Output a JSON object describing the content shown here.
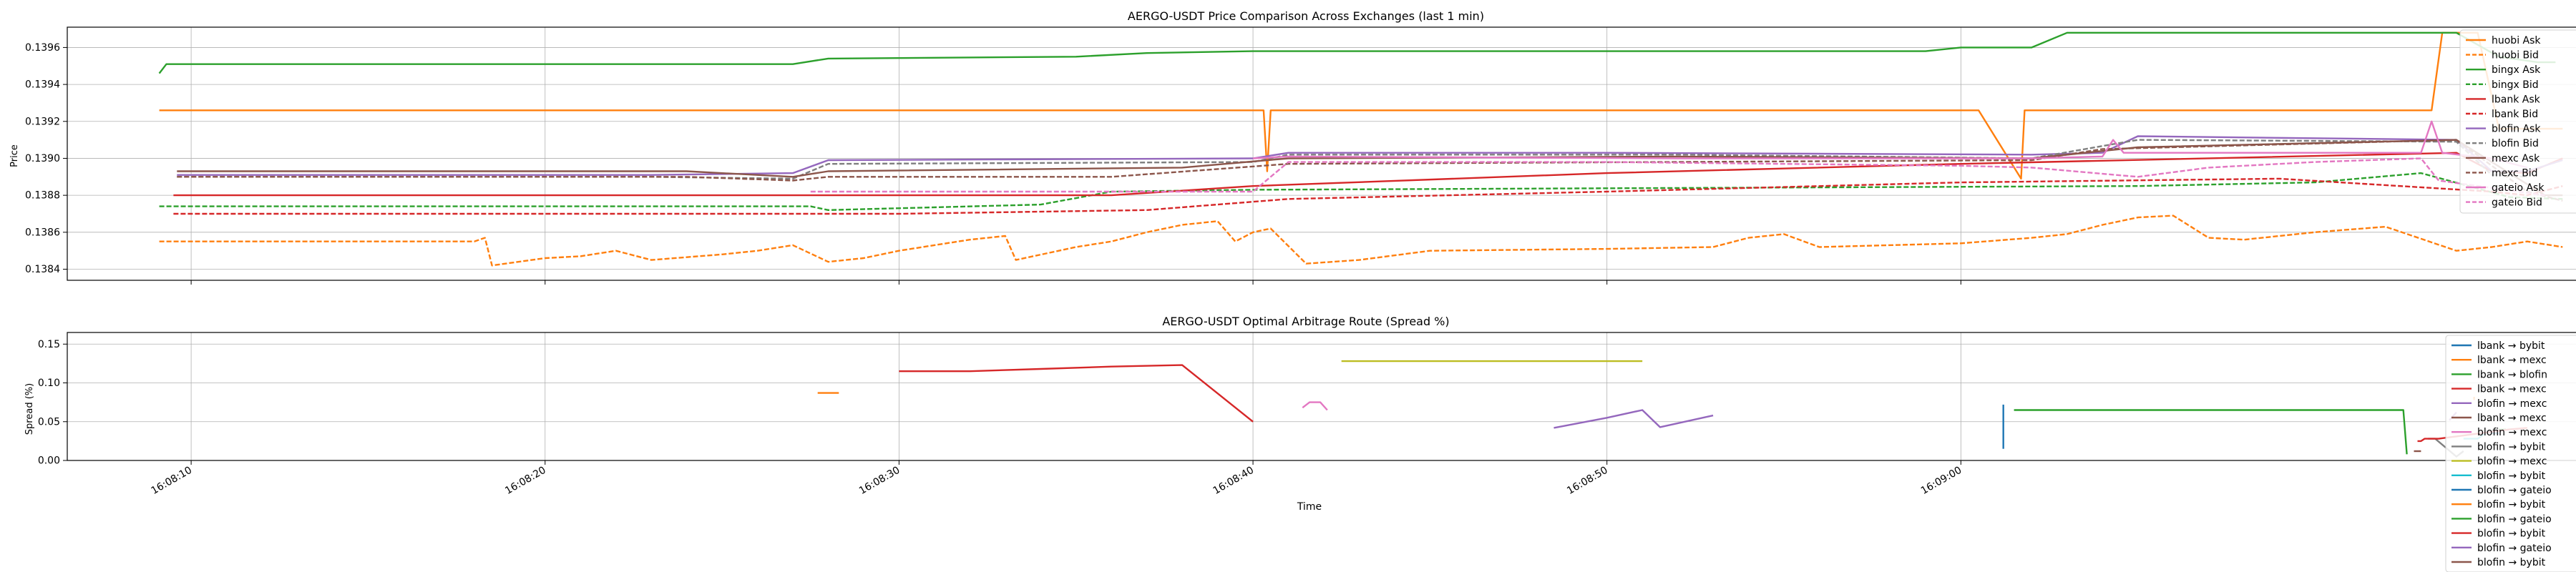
{
  "chart_data": [
    {
      "type": "line",
      "title": "AERGO-USDT Price Comparison Across Exchanges (last 1 min)",
      "xlabel": "",
      "ylabel": "Price",
      "x_unit": "seconds",
      "x_range": [
        "16:08:06.5",
        "16:09:17.5"
      ],
      "ylim": [
        0.13834,
        0.13971
      ],
      "yticks": [
        0.1384,
        0.1386,
        0.1388,
        0.139,
        0.1392,
        0.1394,
        0.1396
      ],
      "ytick_labels": [
        "0.1384",
        "0.1386",
        "0.1388",
        "0.1390",
        "0.1392",
        "0.1394",
        "0.1396"
      ],
      "xticks": [
        "16:08:10",
        "16:08:20",
        "16:08:30",
        "16:08:40",
        "16:08:50",
        "16:09:00"
      ],
      "grid": true,
      "legend_position": "upper-right",
      "series": [
        {
          "name": "huobi Ask",
          "color": "#ff7f0e",
          "dash": false,
          "x": [
            "16:08:09.1",
            "16:08:40.3",
            "16:08:40.4",
            "16:08:40.5",
            "16:09:00.5",
            "16:09:01.7",
            "16:09:01.8",
            "16:09:13.3",
            "16:09:13.6",
            "16:09:13.8",
            "16:09:14.2",
            "16:09:14.6",
            "16:09:15.2",
            "16:09:17.0"
          ],
          "y": [
            0.13926,
            0.13926,
            0.13893,
            0.13926,
            0.13926,
            0.13889,
            0.13926,
            0.13926,
            0.13968,
            0.13968,
            0.13968,
            0.13968,
            0.13916,
            0.13916
          ]
        },
        {
          "name": "huobi Bid",
          "color": "#ff7f0e",
          "dash": true,
          "x": [
            "16:08:09.1",
            "16:08:18.0",
            "16:08:18.3",
            "16:08:18.5",
            "16:08:20.0",
            "16:08:21.0",
            "16:08:22.0",
            "16:08:23.0",
            "16:08:25.0",
            "16:08:26.0",
            "16:08:27.0",
            "16:08:28.0",
            "16:08:28.5",
            "16:08:29.0",
            "16:08:30.0",
            "16:08:31.0",
            "16:08:32.0",
            "16:08:33.0",
            "16:08:33.3",
            "16:08:35.0",
            "16:08:36.0",
            "16:08:37.0",
            "16:08:38.0",
            "16:08:39.0",
            "16:08:39.5",
            "16:08:40.0",
            "16:08:40.5",
            "16:08:41.5",
            "16:08:43.0",
            "16:08:45.0",
            "16:08:50.0",
            "16:08:53.0",
            "16:08:54.0",
            "16:08:55.0",
            "16:08:56.0",
            "16:09:00.0",
            "16:09:02.0",
            "16:09:03.0",
            "16:09:04.0",
            "16:09:05.0",
            "16:09:06.0",
            "16:09:07.0",
            "16:09:08.0",
            "16:09:10.0",
            "16:09:12.0",
            "16:09:14.0",
            "16:09:15.0",
            "16:09:16.0",
            "16:09:17.0"
          ],
          "y": [
            0.13855,
            0.13855,
            0.13857,
            0.13842,
            0.13846,
            0.13847,
            0.1385,
            0.13845,
            0.13848,
            0.1385,
            0.13853,
            0.13844,
            0.13845,
            0.13846,
            0.1385,
            0.13853,
            0.13856,
            0.13858,
            0.13845,
            0.13852,
            0.13855,
            0.1386,
            0.13864,
            0.13866,
            0.13855,
            0.1386,
            0.13862,
            0.13843,
            0.13845,
            0.1385,
            0.13851,
            0.13852,
            0.13857,
            0.13859,
            0.13852,
            0.13854,
            0.13857,
            0.13859,
            0.13864,
            0.13868,
            0.13869,
            0.13857,
            0.13856,
            0.1386,
            0.13863,
            0.1385,
            0.13852,
            0.13855,
            0.13852
          ]
        },
        {
          "name": "bingx Ask",
          "color": "#2ca02c",
          "dash": false,
          "x": [
            "16:08:09.1",
            "16:08:09.3",
            "16:08:27.0",
            "16:08:28.0",
            "16:08:35.0",
            "16:08:37.0",
            "16:08:40.0",
            "16:08:59.0",
            "16:09:00.0",
            "16:09:02.0",
            "16:09:03.0",
            "16:09:14.0",
            "16:09:15.2",
            "16:09:16.3",
            "16:09:16.8"
          ],
          "y": [
            0.13946,
            0.13951,
            0.13951,
            0.13954,
            0.13955,
            0.13957,
            0.13958,
            0.13958,
            0.1396,
            0.1396,
            0.13968,
            0.13968,
            0.13955,
            0.13952,
            0.13952
          ]
        },
        {
          "name": "bingx Bid",
          "color": "#2ca02c",
          "dash": true,
          "x": [
            "16:08:09.1",
            "16:08:27.5",
            "16:08:28.0",
            "16:08:34.0",
            "16:08:36.0",
            "16:08:40.0",
            "16:09:05.0",
            "16:09:10.0",
            "16:09:13.0",
            "16:09:15.5",
            "16:09:17.0"
          ],
          "y": [
            0.13874,
            0.13874,
            0.13872,
            0.13875,
            0.13882,
            0.13883,
            0.13885,
            0.13887,
            0.13892,
            0.13879,
            0.13878
          ]
        },
        {
          "name": "lbank Ask",
          "color": "#d62728",
          "dash": false,
          "x": [
            "16:08:09.5",
            "16:08:30.0",
            "16:08:36.0",
            "16:08:40.0",
            "16:08:50.0",
            "16:09:00.0",
            "16:09:14.0",
            "16:09:15.0",
            "16:09:16.0",
            "16:09:17.0"
          ],
          "y": [
            0.1388,
            0.1388,
            0.1388,
            0.13885,
            0.13892,
            0.13897,
            0.13903,
            0.13893,
            0.13892,
            0.139
          ]
        },
        {
          "name": "lbank Bid",
          "color": "#d62728",
          "dash": true,
          "x": [
            "16:08:09.5",
            "16:08:20.0",
            "16:08:30.0",
            "16:08:37.0",
            "16:08:41.0",
            "16:08:50.0",
            "16:09:00.0",
            "16:09:09.0",
            "16:09:15.0",
            "16:09:16.0",
            "16:09:17.0"
          ],
          "y": [
            0.1387,
            0.1387,
            0.1387,
            0.13872,
            0.13878,
            0.13882,
            0.13887,
            0.13889,
            0.13882,
            0.1388,
            0.13885
          ]
        },
        {
          "name": "blofin Ask",
          "color": "#9467bd",
          "dash": false,
          "x": [
            "16:08:09.6",
            "16:08:23.0",
            "16:08:27.0",
            "16:08:28.0",
            "16:08:40.0",
            "16:08:41.0",
            "16:08:50.0",
            "16:09:02.0",
            "16:09:04.0",
            "16:09:05.0",
            "16:09:14.0",
            "16:09:15.0",
            "16:09:16.0",
            "16:09:17.0"
          ],
          "y": [
            0.13891,
            0.13891,
            0.13892,
            0.13899,
            0.139,
            0.13903,
            0.13903,
            0.13902,
            0.13903,
            0.13912,
            0.1391,
            0.13893,
            0.13893,
            0.13899
          ]
        },
        {
          "name": "blofin Bid",
          "color": "#7f7f7f",
          "dash": true,
          "x": [
            "16:08:09.6",
            "16:08:23.0",
            "16:08:27.0",
            "16:08:28.0",
            "16:08:40.0",
            "16:08:41.0",
            "16:08:52.0",
            "16:09:02.0",
            "16:09:05.0",
            "16:09:14.0",
            "16:09:15.0",
            "16:09:16.0"
          ],
          "y": [
            0.1389,
            0.1389,
            0.13889,
            0.13897,
            0.13898,
            0.13902,
            0.13902,
            0.139,
            0.1391,
            0.13909,
            0.13891,
            0.1389
          ]
        },
        {
          "name": "mexc Ask",
          "color": "#8c564b",
          "dash": false,
          "x": [
            "16:08:09.6",
            "16:08:24.0",
            "16:08:27.0",
            "16:08:28.0",
            "16:08:38.0",
            "16:08:41.0",
            "16:08:52.0",
            "16:09:02.0",
            "16:09:05.0",
            "16:09:14.0",
            "16:09:16.5",
            "16:09:17.0"
          ],
          "y": [
            0.13893,
            0.13893,
            0.1389,
            0.13893,
            0.13895,
            0.139,
            0.13901,
            0.139,
            0.13906,
            0.1391,
            0.1388,
            0.1388
          ]
        },
        {
          "name": "mexc Bid",
          "color": "#8c564b",
          "dash": true,
          "x": [
            "16:08:09.6",
            "16:08:24.0",
            "16:08:27.0",
            "16:08:28.0",
            "16:08:36.0",
            "16:08:41.0",
            "16:09:02.0",
            "16:09:04.0",
            "16:09:14.0",
            "16:09:16.0",
            "16:09:17.0"
          ],
          "y": [
            0.1389,
            0.1389,
            0.13888,
            0.1389,
            0.1389,
            0.13897,
            0.13899,
            0.13905,
            0.1391,
            0.13882,
            0.13877
          ]
        },
        {
          "name": "gateio Ask",
          "color": "#e377c2",
          "dash": false,
          "x": [
            "16:08:40.0",
            "16:08:41.0",
            "16:08:52.0",
            "16:09:02.0",
            "16:09:04.0",
            "16:09:04.3",
            "16:09:04.6",
            "16:09:13.0",
            "16:09:13.3",
            "16:09:13.6",
            "16:09:15.0",
            "16:09:16.0"
          ],
          "y": [
            0.139,
            0.13901,
            0.139,
            0.139,
            0.13901,
            0.1391,
            0.13903,
            0.13903,
            0.1392,
            0.13903,
            0.139,
            0.13895
          ]
        },
        {
          "name": "gateio Bid",
          "color": "#e377c2",
          "dash": true,
          "x": [
            "16:08:27.5",
            "16:08:40.0",
            "16:08:41.0",
            "16:08:50.0",
            "16:09:00.0",
            "16:09:02.0",
            "16:09:05.0",
            "16:09:07.0",
            "16:09:10.0",
            "16:09:13.0",
            "16:09:13.5",
            "16:09:15.0",
            "16:09:16.5"
          ],
          "y": [
            0.13882,
            0.13882,
            0.13898,
            0.13898,
            0.13896,
            0.13895,
            0.1389,
            0.13895,
            0.13898,
            0.139,
            0.13888,
            0.13884,
            0.1388
          ]
        }
      ]
    },
    {
      "type": "line",
      "title": "AERGO-USDT Optimal Arbitrage Route (Spread %)",
      "xlabel": "Time",
      "ylabel": "Spread (%)",
      "x_unit": "seconds",
      "x_range": [
        "16:08:06.5",
        "16:09:17.5"
      ],
      "ylim": [
        0.0,
        0.165
      ],
      "yticks": [
        0.0,
        0.05,
        0.1,
        0.15
      ],
      "ytick_labels": [
        "0.00",
        "0.05",
        "0.10",
        "0.15"
      ],
      "xticks": [
        "16:08:10",
        "16:08:20",
        "16:08:30",
        "16:08:40",
        "16:08:50",
        "16:09:00"
      ],
      "xtick_labels": [
        "16:08:10",
        "16:08:20",
        "16:08:30",
        "16:08:40",
        "16:08:50",
        "16:09:00"
      ],
      "grid": true,
      "legend_position": "upper-right",
      "series": [
        {
          "name": "lbank → bybit",
          "color": "#1f77b4",
          "x": [
            "16:09:01.2",
            "16:09:01.2"
          ],
          "y": [
            0.015,
            0.072
          ]
        },
        {
          "name": "lbank → mexc",
          "color": "#ff7f0e",
          "x": [
            "16:08:27.7",
            "16:08:28.3"
          ],
          "y": [
            0.087,
            0.087
          ]
        },
        {
          "name": "lbank → blofin",
          "color": "#2ca02c",
          "x": [
            "16:09:01.5",
            "16:09:04.0",
            "16:09:06.0",
            "16:09:08.0",
            "16:09:10.0",
            "16:09:12.0",
            "16:09:12.5",
            "16:09:12.6"
          ],
          "y": [
            0.065,
            0.065,
            0.065,
            0.065,
            0.065,
            0.065,
            0.065,
            0.008
          ]
        },
        {
          "name": "lbank → mexc",
          "color": "#d62728",
          "x": [
            "16:08:30.0",
            "16:08:32.0",
            "16:08:34.0",
            "16:08:36.0",
            "16:08:38.0",
            "16:08:40.0"
          ],
          "y": [
            0.115,
            0.115,
            0.118,
            0.121,
            0.123,
            0.05
          ]
        },
        {
          "name": "blofin → mexc",
          "color": "#9467bd",
          "x": [
            "16:08:48.5",
            "16:08:50.0",
            "16:08:51.0",
            "16:08:51.5",
            "16:08:53.0"
          ],
          "y": [
            0.042,
            0.055,
            0.065,
            0.043,
            0.058
          ]
        },
        {
          "name": "lbank → mexc",
          "color": "#8c564b",
          "x": [
            "16:09:12.8",
            "16:09:13.0"
          ],
          "y": [
            0.012,
            0.012
          ]
        },
        {
          "name": "blofin → mexc",
          "color": "#e377c2",
          "x": [
            "16:08:41.4",
            "16:08:41.6",
            "16:08:41.9",
            "16:08:42.1"
          ],
          "y": [
            0.068,
            0.075,
            0.075,
            0.065
          ]
        },
        {
          "name": "blofin → bybit",
          "color": "#7f7f7f",
          "x": [
            "16:09:13.2",
            "16:09:13.4",
            "16:09:14.0",
            "16:09:14.2"
          ],
          "y": [
            0.028,
            0.028,
            0.005,
            0.012
          ]
        },
        {
          "name": "blofin → mexc",
          "color": "#bcbd22",
          "x": [
            "16:08:42.5",
            "16:08:45.0",
            "16:08:50.0",
            "16:08:51.0"
          ],
          "y": [
            0.128,
            0.128,
            0.128,
            0.128
          ]
        },
        {
          "name": "blofin → bybit",
          "color": "#17becf",
          "x": [
            "16:09:14.2",
            "16:09:14.6",
            "16:09:14.9"
          ],
          "y": [
            0.028,
            0.028,
            0.038
          ]
        },
        {
          "name": "blofin → gateio",
          "color": "#1f77b4",
          "x": [
            "16:09:15.0",
            "16:09:15.2"
          ],
          "y": [
            0.035,
            0.035
          ]
        },
        {
          "name": "blofin → bybit",
          "color": "#ff7f0e",
          "x": [
            "16:09:14.5",
            "16:09:14.5"
          ],
          "y": [
            0.078,
            0.082
          ]
        },
        {
          "name": "blofin → gateio",
          "color": "#2ca02c",
          "x": [
            "16:09:15.2",
            "16:09:15.4"
          ],
          "y": [
            0.04,
            0.04
          ]
        },
        {
          "name": "blofin → bybit",
          "color": "#d62728",
          "x": [
            "16:09:12.9",
            "16:09:13.0",
            "16:09:13.1",
            "16:09:13.5",
            "16:09:15.5",
            "16:09:16.0"
          ],
          "y": [
            0.025,
            0.025,
            0.028,
            0.028,
            0.04,
            0.042
          ]
        },
        {
          "name": "blofin → gateio",
          "color": "#9467bd",
          "x": [
            "16:09:13.8",
            "16:09:14.0"
          ],
          "y": [
            0.052,
            0.062
          ]
        },
        {
          "name": "blofin → bybit",
          "color": "#8c564b",
          "x": [],
          "y": []
        }
      ]
    }
  ]
}
